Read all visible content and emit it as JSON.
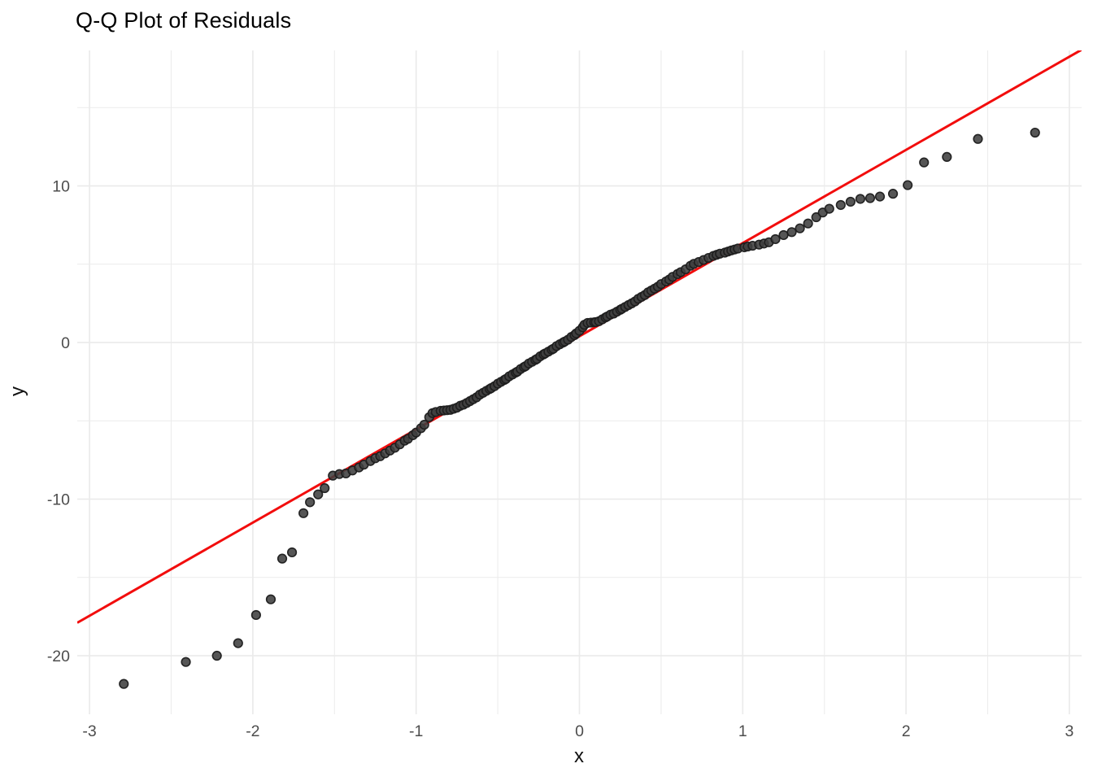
{
  "chart_data": {
    "type": "scatter",
    "title": "Q-Q Plot of Residuals",
    "xlabel": "x",
    "ylabel": "y",
    "x_ticks": [
      -3,
      -2,
      -1,
      0,
      1,
      2,
      3
    ],
    "y_ticks": [
      -20,
      -10,
      0,
      10
    ],
    "x_minor_ticks": [
      -2.5,
      -1.5,
      -0.5,
      0.5,
      1.5,
      2.5
    ],
    "y_minor_ticks": [
      -15,
      -5,
      5,
      15
    ],
    "xlim": [
      -3.075,
      3.075
    ],
    "ylim": [
      -23.74,
      18.65
    ],
    "grid": true,
    "legend": "none",
    "reference_line": {
      "slope": 5.95,
      "intercept": 0.4,
      "color": "#F20D0D",
      "width": 3
    },
    "point_style": {
      "fill": "#3f3f3f",
      "stroke": "#1c1c1c",
      "radius": 5.3,
      "opacity": 0.88
    },
    "grid_color": "#ebebeb",
    "background_color": "#ffffff",
    "tick_label_color": "#4d4d4d",
    "title_color": "#000000",
    "points": [
      [
        -2.79,
        -21.8
      ],
      [
        -2.41,
        -20.4
      ],
      [
        -2.22,
        -20.0
      ],
      [
        -2.09,
        -19.2
      ],
      [
        -1.98,
        -17.4
      ],
      [
        -1.89,
        -16.4
      ],
      [
        -1.82,
        -13.8
      ],
      [
        -1.76,
        -13.4
      ],
      [
        -1.69,
        -10.9
      ],
      [
        -1.65,
        -10.2
      ],
      [
        -1.6,
        -9.7
      ],
      [
        -1.56,
        -9.3
      ],
      [
        -1.51,
        -8.5
      ],
      [
        -1.47,
        -8.4
      ],
      [
        -1.43,
        -8.36
      ],
      [
        -1.39,
        -8.17
      ],
      [
        -1.35,
        -7.98
      ],
      [
        -1.32,
        -7.8
      ],
      [
        -1.28,
        -7.57
      ],
      [
        -1.25,
        -7.39
      ],
      [
        -1.22,
        -7.26
      ],
      [
        -1.19,
        -7.08
      ],
      [
        -1.16,
        -6.9
      ],
      [
        -1.13,
        -6.72
      ],
      [
        -1.1,
        -6.5
      ],
      [
        -1.07,
        -6.27
      ],
      [
        -1.05,
        -6.15
      ],
      [
        -1.02,
        -5.92
      ],
      [
        -1.0,
        -5.75
      ],
      [
        -0.97,
        -5.47
      ],
      [
        -0.95,
        -5.25
      ],
      [
        -0.92,
        -4.77
      ],
      [
        -0.9,
        -4.51
      ],
      [
        -0.88,
        -4.44
      ],
      [
        -0.85,
        -4.36
      ],
      [
        -0.83,
        -4.34
      ],
      [
        -0.81,
        -4.32
      ],
      [
        -0.79,
        -4.3
      ],
      [
        -0.77,
        -4.23
      ],
      [
        -0.75,
        -4.16
      ],
      [
        -0.73,
        -4.04
      ],
      [
        -0.71,
        -3.97
      ],
      [
        -0.69,
        -3.86
      ],
      [
        -0.67,
        -3.74
      ],
      [
        -0.65,
        -3.62
      ],
      [
        -0.63,
        -3.5
      ],
      [
        -0.61,
        -3.33
      ],
      [
        -0.59,
        -3.21
      ],
      [
        -0.57,
        -3.09
      ],
      [
        -0.55,
        -2.97
      ],
      [
        -0.54,
        -2.91
      ],
      [
        -0.52,
        -2.79
      ],
      [
        -0.5,
        -2.63
      ],
      [
        -0.48,
        -2.51
      ],
      [
        -0.46,
        -2.39
      ],
      [
        -0.45,
        -2.33
      ],
      [
        -0.43,
        -2.16
      ],
      [
        -0.41,
        -2.04
      ],
      [
        -0.39,
        -1.92
      ],
      [
        -0.38,
        -1.86
      ],
      [
        -0.36,
        -1.69
      ],
      [
        -0.34,
        -1.57
      ],
      [
        -0.33,
        -1.51
      ],
      [
        -0.31,
        -1.34
      ],
      [
        -0.29,
        -1.23
      ],
      [
        -0.27,
        -1.11
      ],
      [
        -0.26,
        -1.05
      ],
      [
        -0.24,
        -0.88
      ],
      [
        -0.22,
        -0.76
      ],
      [
        -0.21,
        -0.7
      ],
      [
        -0.19,
        -0.58
      ],
      [
        -0.17,
        -0.46
      ],
      [
        -0.16,
        -0.4
      ],
      [
        -0.14,
        -0.23
      ],
      [
        -0.12,
        -0.11
      ],
      [
        -0.1,
        0.0
      ],
      [
        -0.09,
        0.06
      ],
      [
        -0.07,
        0.18
      ],
      [
        -0.05,
        0.35
      ],
      [
        -0.03,
        0.47
      ],
      [
        -0.02,
        0.58
      ],
      [
        0.0,
        0.75
      ],
      [
        0.02,
        0.97
      ],
      [
        0.03,
        1.13
      ],
      [
        0.05,
        1.25
      ],
      [
        0.07,
        1.27
      ],
      [
        0.09,
        1.29
      ],
      [
        0.1,
        1.3
      ],
      [
        0.12,
        1.36
      ],
      [
        0.14,
        1.48
      ],
      [
        0.16,
        1.6
      ],
      [
        0.17,
        1.66
      ],
      [
        0.19,
        1.78
      ],
      [
        0.21,
        1.85
      ],
      [
        0.23,
        1.97
      ],
      [
        0.25,
        2.09
      ],
      [
        0.26,
        2.15
      ],
      [
        0.28,
        2.27
      ],
      [
        0.3,
        2.39
      ],
      [
        0.32,
        2.5
      ],
      [
        0.34,
        2.62
      ],
      [
        0.36,
        2.79
      ],
      [
        0.38,
        2.91
      ],
      [
        0.4,
        3.03
      ],
      [
        0.42,
        3.2
      ],
      [
        0.44,
        3.32
      ],
      [
        0.46,
        3.44
      ],
      [
        0.48,
        3.56
      ],
      [
        0.5,
        3.73
      ],
      [
        0.53,
        3.9
      ],
      [
        0.55,
        4.02
      ],
      [
        0.57,
        4.19
      ],
      [
        0.6,
        4.37
      ],
      [
        0.62,
        4.49
      ],
      [
        0.65,
        4.67
      ],
      [
        0.68,
        4.9
      ],
      [
        0.7,
        5.02
      ],
      [
        0.73,
        5.14
      ],
      [
        0.76,
        5.27
      ],
      [
        0.79,
        5.4
      ],
      [
        0.82,
        5.53
      ],
      [
        0.84,
        5.6
      ],
      [
        0.86,
        5.67
      ],
      [
        0.89,
        5.74
      ],
      [
        0.91,
        5.81
      ],
      [
        0.93,
        5.88
      ],
      [
        0.95,
        5.94
      ],
      [
        0.97,
        6.0
      ],
      [
        1.01,
        6.08
      ],
      [
        1.03,
        6.13
      ],
      [
        1.06,
        6.18
      ],
      [
        1.1,
        6.25
      ],
      [
        1.13,
        6.32
      ],
      [
        1.16,
        6.4
      ],
      [
        1.2,
        6.6
      ],
      [
        1.25,
        6.86
      ],
      [
        1.3,
        7.05
      ],
      [
        1.35,
        7.29
      ],
      [
        1.4,
        7.6
      ],
      [
        1.45,
        8.0
      ],
      [
        1.49,
        8.3
      ],
      [
        1.53,
        8.54
      ],
      [
        1.6,
        8.78
      ],
      [
        1.66,
        8.99
      ],
      [
        1.72,
        9.17
      ],
      [
        1.78,
        9.22
      ],
      [
        1.84,
        9.32
      ],
      [
        1.92,
        9.5
      ],
      [
        2.01,
        10.05
      ],
      [
        2.11,
        11.5
      ],
      [
        2.25,
        11.85
      ],
      [
        2.44,
        13.0
      ],
      [
        2.79,
        13.4
      ]
    ]
  }
}
